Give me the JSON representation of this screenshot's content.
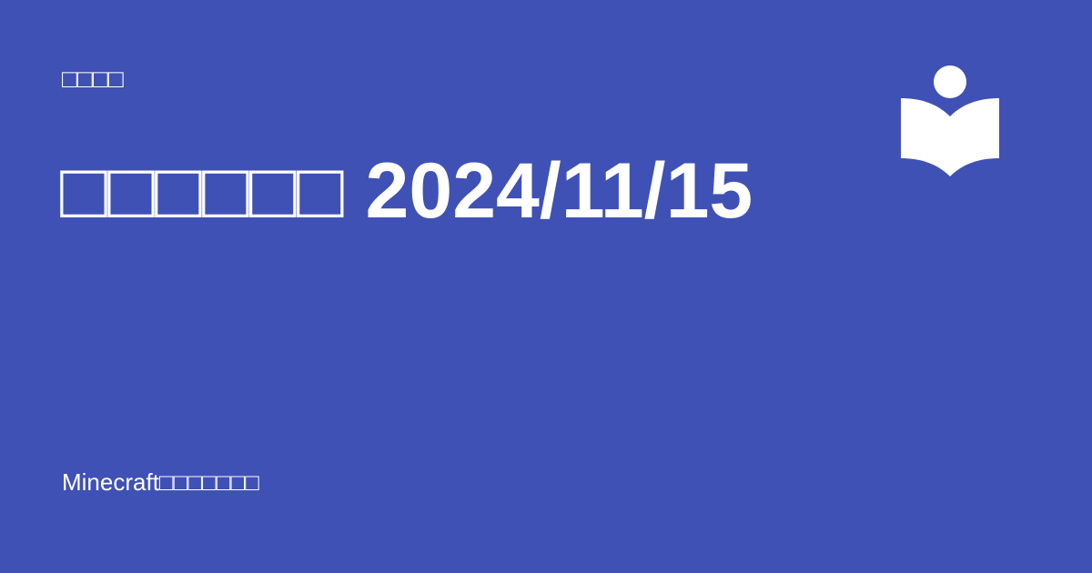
{
  "card": {
    "category": "□□□□",
    "title": "□□□□□□ 2024/11/15",
    "site_name": "Minecraft□□□□□□□",
    "logo_icon": "reader-book-icon",
    "colors": {
      "background": "#3f51b5",
      "foreground": "#ffffff"
    }
  }
}
